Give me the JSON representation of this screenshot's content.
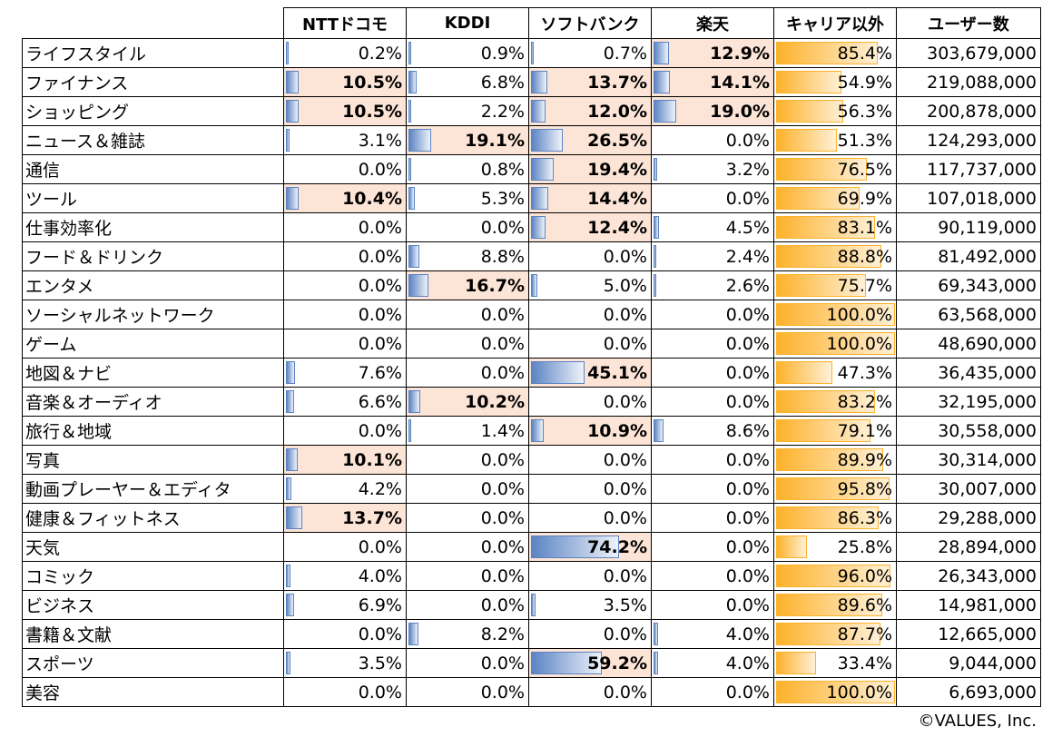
{
  "chart_data": {
    "type": "table",
    "columns": [
      "",
      "NTTドコモ",
      "KDDI",
      "ソフトバンク",
      "楽天",
      "キャリア以外",
      "ユーザー数"
    ],
    "highlight_threshold_percent": 10,
    "colors": {
      "highlight_bg": "#FCE4D6",
      "carrier_bar": "#5B84C4",
      "other_bar": "#FDB22B"
    },
    "rows": [
      [
        "ライフスタイル",
        "0.2%",
        "0.9%",
        "0.7%",
        "12.9%",
        "85.4%",
        "303,679,000"
      ],
      [
        "ファイナンス",
        "10.5%",
        "6.8%",
        "13.7%",
        "14.1%",
        "54.9%",
        "219,088,000"
      ],
      [
        "ショッピング",
        "10.5%",
        "2.2%",
        "12.0%",
        "19.0%",
        "56.3%",
        "200,878,000"
      ],
      [
        "ニュース＆雑誌",
        "3.1%",
        "19.1%",
        "26.5%",
        "0.0%",
        "51.3%",
        "124,293,000"
      ],
      [
        "通信",
        "0.0%",
        "0.8%",
        "19.4%",
        "3.2%",
        "76.5%",
        "117,737,000"
      ],
      [
        "ツール",
        "10.4%",
        "5.3%",
        "14.4%",
        "0.0%",
        "69.9%",
        "107,018,000"
      ],
      [
        "仕事効率化",
        "0.0%",
        "0.0%",
        "12.4%",
        "4.5%",
        "83.1%",
        "90,119,000"
      ],
      [
        "フード＆ドリンク",
        "0.0%",
        "8.8%",
        "0.0%",
        "2.4%",
        "88.8%",
        "81,492,000"
      ],
      [
        "エンタメ",
        "0.0%",
        "16.7%",
        "5.0%",
        "2.6%",
        "75.7%",
        "69,343,000"
      ],
      [
        "ソーシャルネットワーク",
        "0.0%",
        "0.0%",
        "0.0%",
        "0.0%",
        "100.0%",
        "63,568,000"
      ],
      [
        "ゲーム",
        "0.0%",
        "0.0%",
        "0.0%",
        "0.0%",
        "100.0%",
        "48,690,000"
      ],
      [
        "地図＆ナビ",
        "7.6%",
        "0.0%",
        "45.1%",
        "0.0%",
        "47.3%",
        "36,435,000"
      ],
      [
        "音楽＆オーディオ",
        "6.6%",
        "10.2%",
        "0.0%",
        "0.0%",
        "83.2%",
        "32,195,000"
      ],
      [
        "旅行＆地域",
        "0.0%",
        "1.4%",
        "10.9%",
        "8.6%",
        "79.1%",
        "30,558,000"
      ],
      [
        "写真",
        "10.1%",
        "0.0%",
        "0.0%",
        "0.0%",
        "89.9%",
        "30,314,000"
      ],
      [
        "動画プレーヤー＆エディタ",
        "4.2%",
        "0.0%",
        "0.0%",
        "0.0%",
        "95.8%",
        "30,007,000"
      ],
      [
        "健康＆フィットネス",
        "13.7%",
        "0.0%",
        "0.0%",
        "0.0%",
        "86.3%",
        "29,288,000"
      ],
      [
        "天気",
        "0.0%",
        "0.0%",
        "74.2%",
        "0.0%",
        "25.8%",
        "28,894,000"
      ],
      [
        "コミック",
        "4.0%",
        "0.0%",
        "0.0%",
        "0.0%",
        "96.0%",
        "26,343,000"
      ],
      [
        "ビジネス",
        "6.9%",
        "0.0%",
        "3.5%",
        "0.0%",
        "89.6%",
        "14,981,000"
      ],
      [
        "書籍＆文献",
        "0.0%",
        "8.2%",
        "0.0%",
        "4.0%",
        "87.7%",
        "12,665,000"
      ],
      [
        "スポーツ",
        "3.5%",
        "0.0%",
        "59.2%",
        "4.0%",
        "33.4%",
        "9,044,000"
      ],
      [
        "美容",
        "0.0%",
        "0.0%",
        "0.0%",
        "0.0%",
        "100.0%",
        "6,693,000"
      ]
    ]
  },
  "footer": {
    "copyright": "©VALUES, Inc."
  }
}
